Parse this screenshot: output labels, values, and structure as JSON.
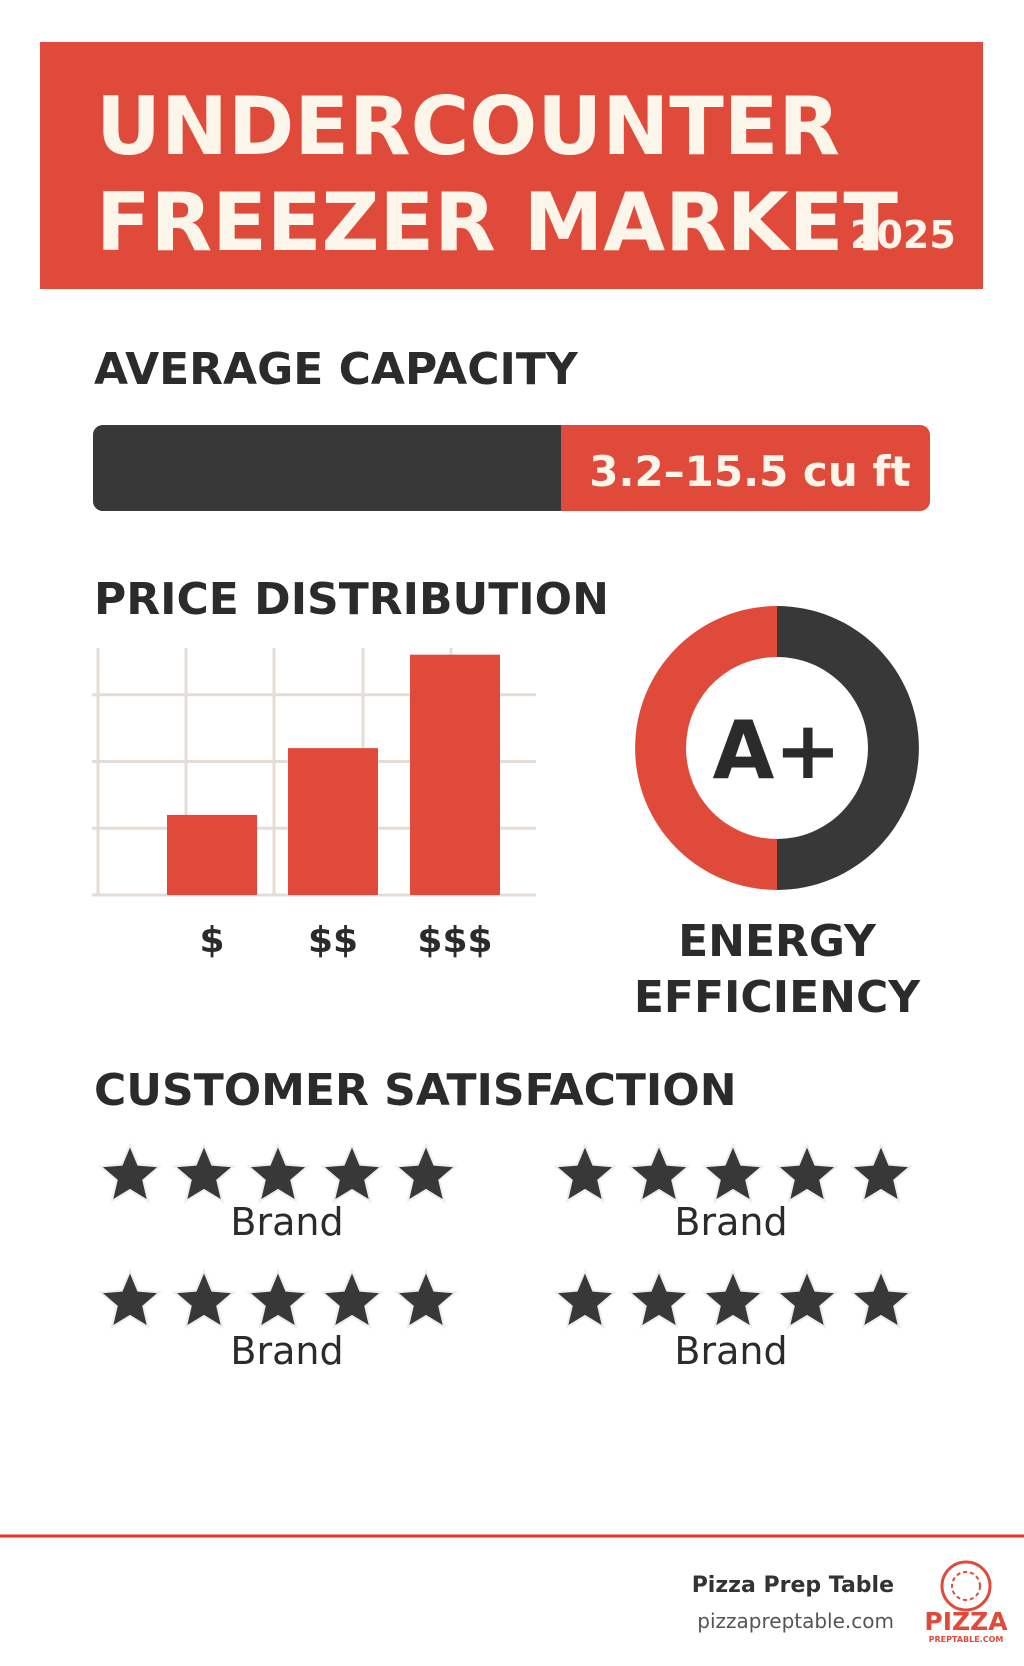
{
  "header": {
    "title_line1": "UNDERCOUNTER",
    "title_line2": "FREEZER MARKET",
    "year": "2025"
  },
  "capacity": {
    "heading": "AVERAGE CAPACITY",
    "range": "3.2–15.5 cu ft"
  },
  "chart_data": {
    "type": "bar",
    "title": "PRICE DISTRIBUTION",
    "categories": [
      "$",
      "$$",
      "$$$"
    ],
    "values": [
      1.2,
      2.2,
      3.6
    ],
    "color": "#e04a3a",
    "ylim": [
      0,
      3.7
    ],
    "yticks": [
      0,
      1,
      2,
      3
    ],
    "grid": true
  },
  "energy": {
    "rating": "A+",
    "label_line1": "ENERGY",
    "label_line2": "EFFICIENCY"
  },
  "satisfaction": {
    "heading": "CUSTOMER SATISFACTION",
    "brands": [
      "Brand",
      "Brand",
      "Brand",
      "Brand"
    ]
  },
  "footer": {
    "name": "Pizza Prep Table",
    "url": "pizzapreptable.com",
    "logo": "PIZZA",
    "logo_sub": "PREPTABLE.COM"
  }
}
